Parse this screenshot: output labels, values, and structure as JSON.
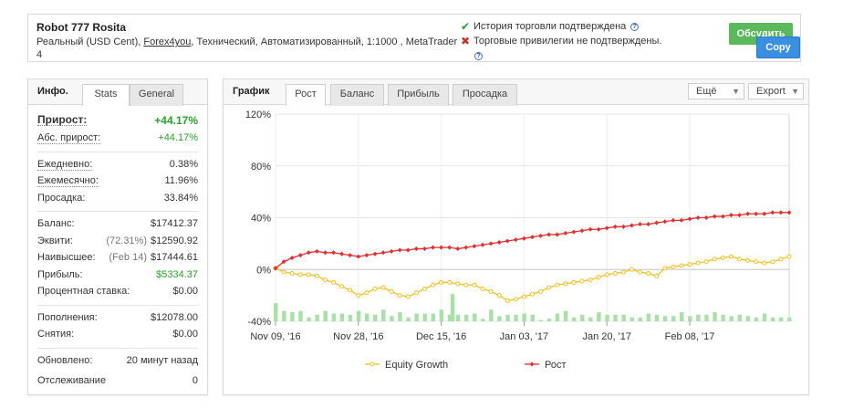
{
  "header": {
    "title": "Robot 777 Rosita",
    "sub_prefix": "Реальный (USD Cent), ",
    "broker": "Forex4you",
    "sub_suffix": ", Технический, Автоматизированный, 1:1000 , MetaTrader 4",
    "verified_history": "История торговли подтверждена",
    "unverified_privileges": "Торговые привилегии не подтверждены.",
    "help_mark": "?",
    "discuss_label": "Обсудить",
    "copy_label": "Copy"
  },
  "left_panel": {
    "tab_title": "Инфо.",
    "tabs": [
      "Stats",
      "General"
    ],
    "gain_label": "Прирост:",
    "gain_value": "+44.17%",
    "abs_gain_label": "Абс. прирост:",
    "abs_gain_value": "+44.17%",
    "daily_label": "Ежедневно:",
    "daily_value": "0.38%",
    "monthly_label": "Ежемесячно:",
    "monthly_value": "11.96%",
    "drawdown_label": "Просадка:",
    "drawdown_value": "33.84%",
    "balance_label": "Баланс:",
    "balance_value": "$17412.37",
    "equity_label": "Эквити:",
    "equity_note": "(72.31%)",
    "equity_value": "$12590.92",
    "highest_label": "Наивысшее:",
    "highest_note": "(Feb 14)",
    "highest_value": "$17444.61",
    "profit_label": "Прибыль:",
    "profit_value": "$5334.37",
    "interest_label": "Процентная ставка:",
    "interest_value": "$0.00",
    "deposits_label": "Пополнения:",
    "deposits_value": "$12078.00",
    "withdrawals_label": "Снятия:",
    "withdrawals_value": "$0.00",
    "updated_label": "Обновлено:",
    "updated_value": "20 минут назад",
    "tracking_label": "Отслеживание",
    "tracking_value": "0"
  },
  "right_panel": {
    "tab_title": "График",
    "tabs": [
      "Рост",
      "Баланс",
      "Прибыль",
      "Просадка"
    ],
    "more_label": "Ещё",
    "export_label": "Export"
  },
  "colors": {
    "growth": "#e03030",
    "equity": "#f0c020",
    "bars": "#a8e0a8",
    "green_text": "#2aa12a"
  },
  "chart_data": {
    "type": "line",
    "title": "",
    "xlabel": "",
    "ylabel": "",
    "ylim": [
      -40,
      120
    ],
    "yticks": [
      120,
      80,
      40,
      0,
      -40
    ],
    "ytick_labels": [
      "120%",
      "80%",
      "40%",
      "0%",
      "-40%"
    ],
    "xticks": [
      "Nov 09, '16",
      "Nov 28, '16",
      "Dec 15, '16",
      "Jan 03, '17",
      "Jan 20, '17",
      "Feb 08, '17"
    ],
    "xtick_index": [
      0,
      10,
      20,
      30,
      40,
      50
    ],
    "grid": true,
    "legend_placement": "bottom",
    "series": [
      {
        "name": "Equity Growth",
        "marker": "circle",
        "values": [
          1,
          -2,
          -3,
          -4,
          -4,
          -5,
          -8,
          -10,
          -13,
          -16,
          -20,
          -18,
          -15,
          -14,
          -17,
          -20,
          -21,
          -18,
          -15,
          -12,
          -10,
          -10,
          -11,
          -12,
          -12,
          -15,
          -17,
          -20,
          -24,
          -23,
          -21,
          -19,
          -17,
          -14,
          -12,
          -11,
          -10,
          -9,
          -8,
          -6,
          -4,
          -3,
          -2,
          0,
          -2,
          -3,
          -5,
          1,
          2,
          3,
          4,
          5,
          6,
          8,
          9,
          10,
          8,
          7,
          6,
          5,
          6,
          8,
          10
        ]
      },
      {
        "name": "Рост",
        "marker": "diamond",
        "values": [
          1,
          6,
          9,
          11,
          13,
          14,
          13,
          13,
          12,
          11,
          10,
          11,
          12,
          13,
          14,
          15,
          15,
          16,
          16,
          17,
          17,
          17,
          16,
          17,
          18,
          19,
          20,
          21,
          22,
          23,
          24,
          25,
          26,
          27,
          27,
          28,
          29,
          30,
          31,
          31,
          32,
          33,
          33,
          34,
          35,
          35,
          36,
          37,
          38,
          38,
          39,
          40,
          40,
          41,
          41,
          42,
          42,
          43,
          43,
          43,
          44,
          44,
          44
        ]
      }
    ],
    "volume_bars": [
      14,
      8,
      7,
      8,
      3,
      5,
      8,
      6,
      6,
      5,
      8,
      6,
      5,
      9,
      4,
      7,
      3,
      6,
      6,
      6,
      9,
      5,
      5,
      5,
      6,
      2,
      9,
      4,
      5,
      5,
      6,
      5,
      1,
      2,
      6,
      8,
      3,
      5,
      3,
      7,
      5,
      5,
      5,
      3,
      3,
      6,
      5,
      4,
      4,
      7,
      4,
      5,
      5,
      7,
      5,
      4,
      5,
      4,
      3,
      6,
      3,
      3,
      3
    ],
    "volume_bars_extra": {
      "index": 22,
      "value": 21
    }
  }
}
